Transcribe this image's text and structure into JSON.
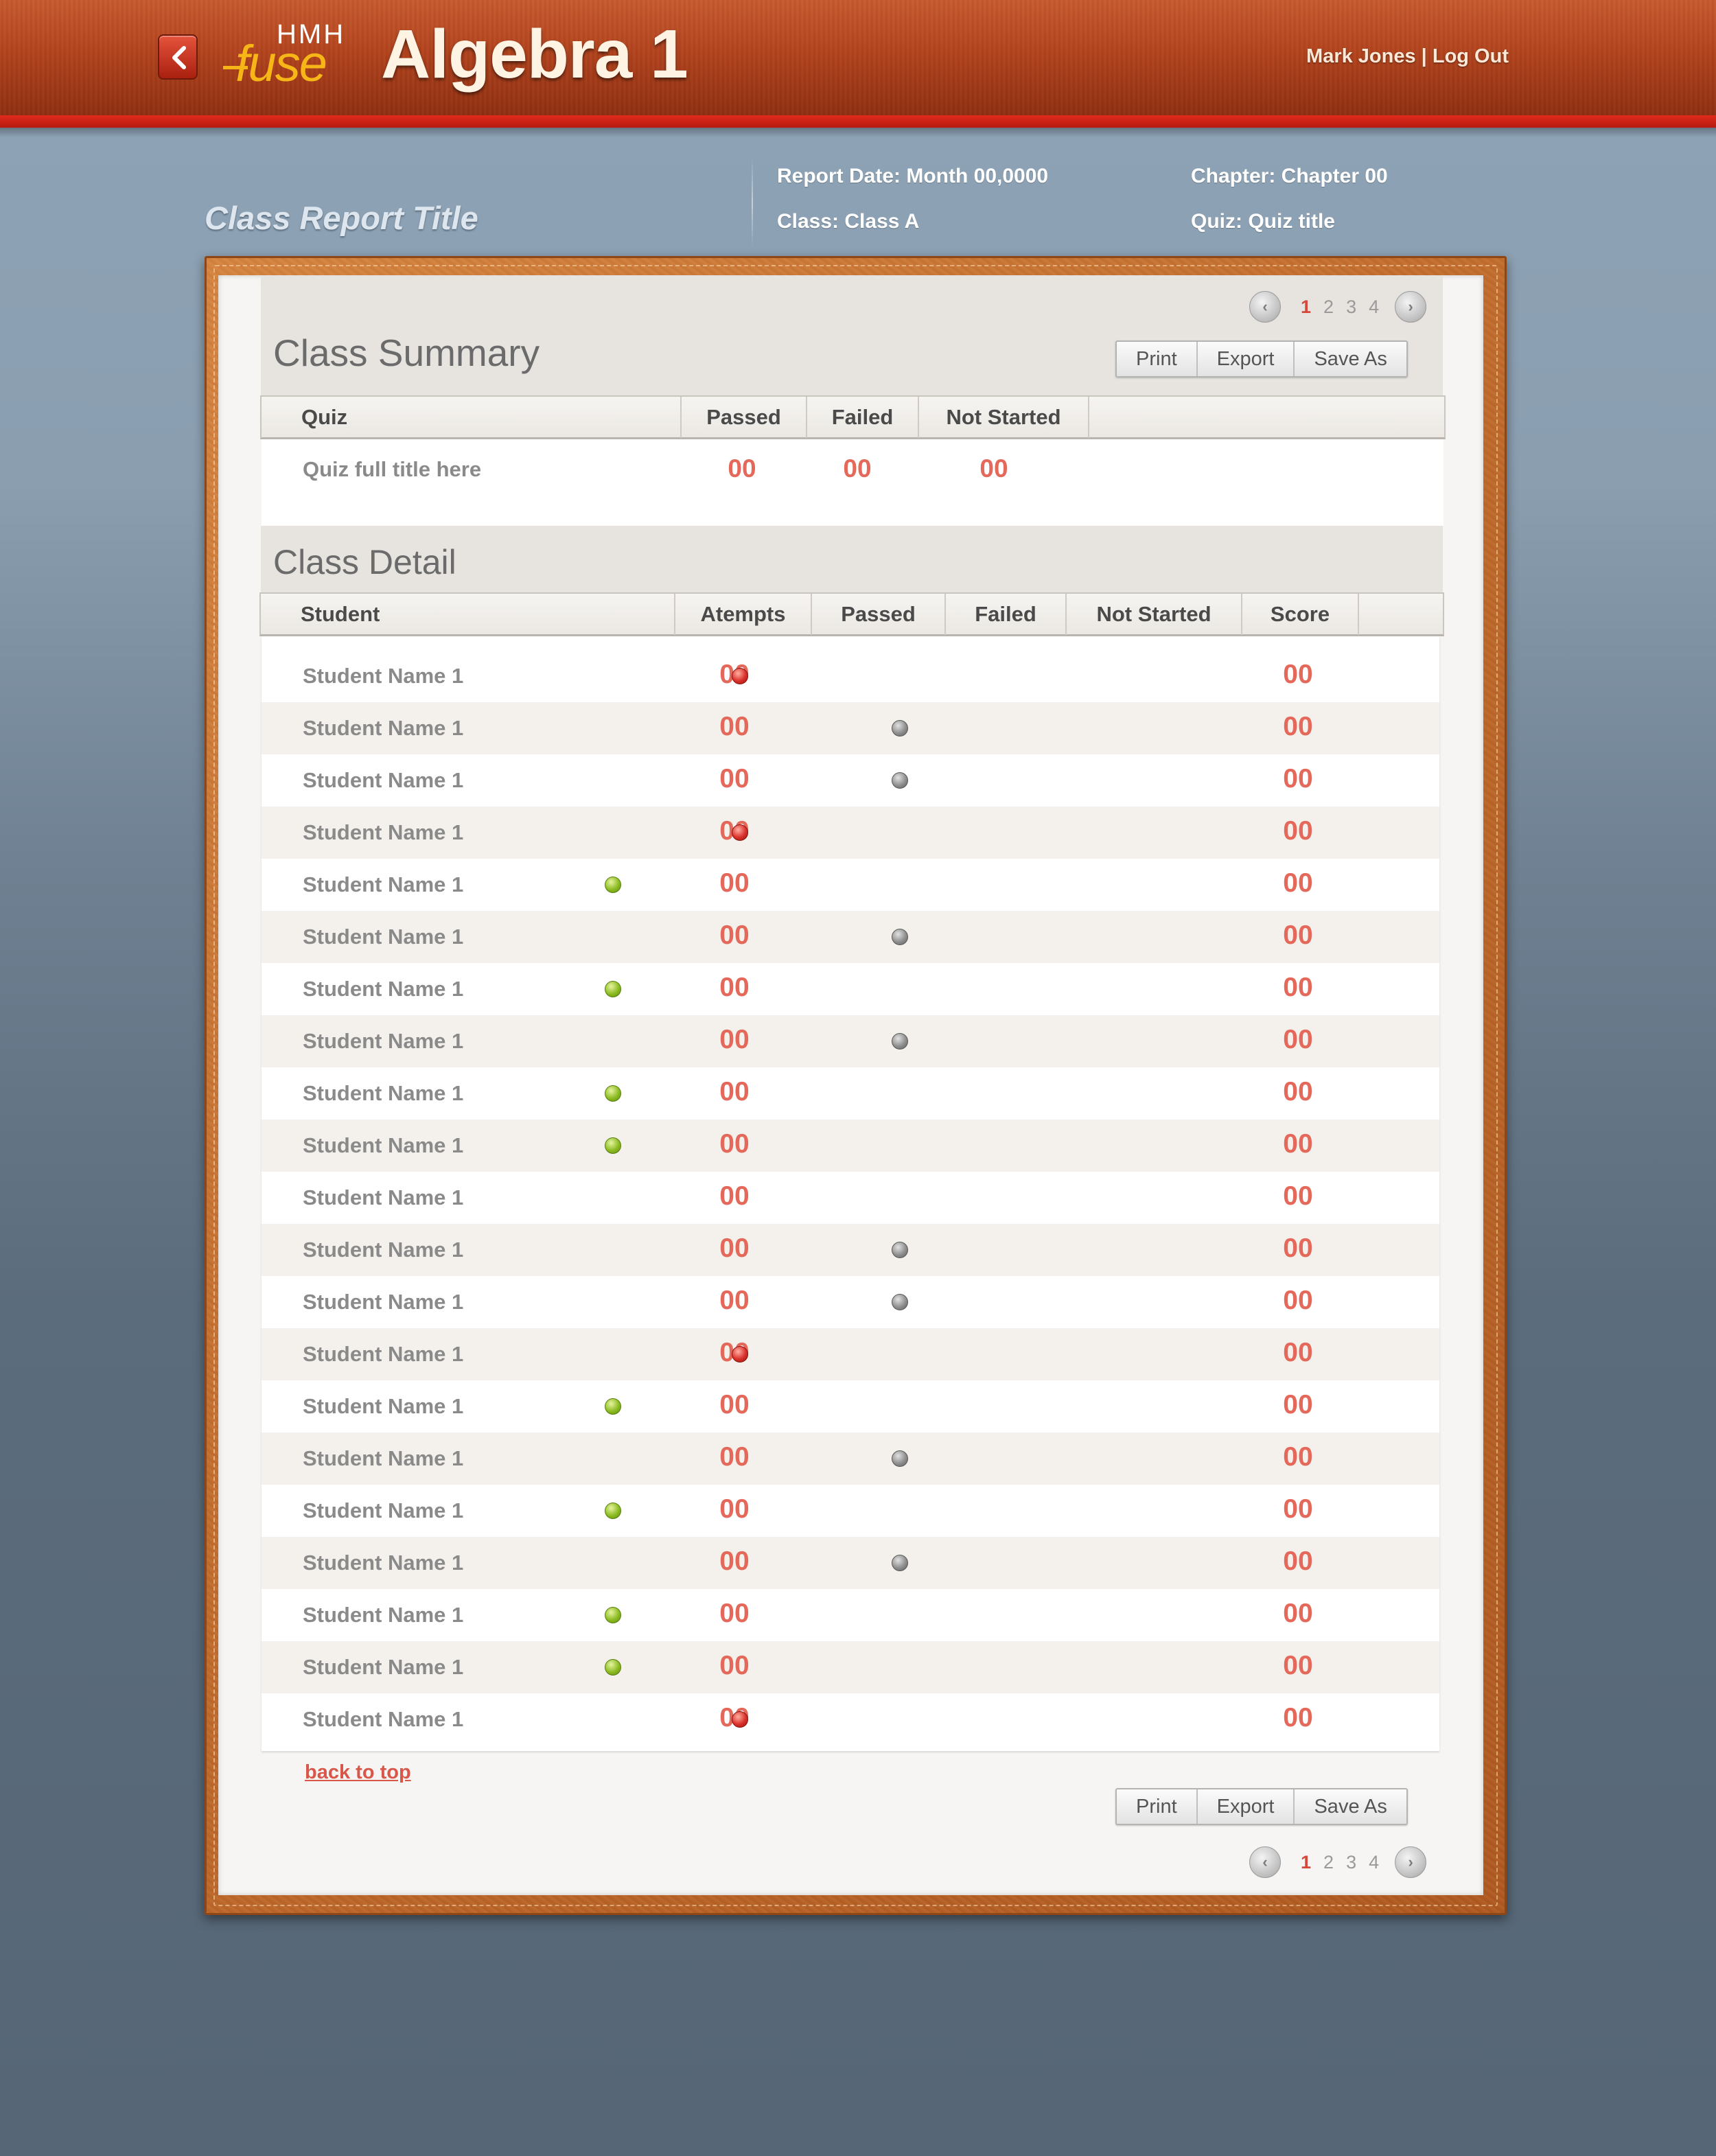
{
  "header": {
    "logo_top": "HMH",
    "logo_main": "fuse",
    "app_title": "Algebra 1",
    "user_name": "Mark Jones",
    "separator": " | ",
    "logout_label": "Log Out"
  },
  "report": {
    "title": "Class Report Title",
    "report_date": "Report Date: Month 00,0000",
    "class": "Class: Class A",
    "chapter": "Chapter: Chapter 00",
    "quiz": "Quiz: Quiz title"
  },
  "pager": {
    "pages": [
      "1",
      "2",
      "3",
      "4"
    ],
    "current": "1"
  },
  "actions": {
    "print": "Print",
    "export": "Export",
    "save_as": "Save As"
  },
  "summary": {
    "title": "Class Summary",
    "headers": {
      "quiz": "Quiz",
      "passed": "Passed",
      "failed": "Failed",
      "not_started": "Not Started"
    },
    "row": {
      "quiz": "Quiz full title here",
      "passed": "00",
      "failed": "00",
      "not_started": "00"
    }
  },
  "detail": {
    "title": "Class Detail",
    "headers": {
      "student": "Student",
      "attempts": "Atempts",
      "passed": "Passed",
      "failed": "Failed",
      "not_started": "Not Started",
      "score": "Score"
    },
    "rows": [
      {
        "name": "Student Name 1",
        "attempts": "00",
        "status": "failed",
        "score": "00"
      },
      {
        "name": "Student Name 1",
        "attempts": "00",
        "status": "not_started",
        "score": "00"
      },
      {
        "name": "Student Name 1",
        "attempts": "00",
        "status": "not_started",
        "score": "00"
      },
      {
        "name": "Student Name 1",
        "attempts": "00",
        "status": "failed",
        "score": "00"
      },
      {
        "name": "Student Name 1",
        "attempts": "00",
        "status": "passed",
        "score": "00"
      },
      {
        "name": "Student Name 1",
        "attempts": "00",
        "status": "not_started",
        "score": "00"
      },
      {
        "name": "Student Name 1",
        "attempts": "00",
        "status": "passed",
        "score": "00"
      },
      {
        "name": "Student Name 1",
        "attempts": "00",
        "status": "not_started",
        "score": "00"
      },
      {
        "name": "Student Name 1",
        "attempts": "00",
        "status": "passed",
        "score": "00"
      },
      {
        "name": "Student Name 1",
        "attempts": "00",
        "status": "passed",
        "score": "00"
      },
      {
        "name": "Student Name 1",
        "attempts": "00",
        "status": "",
        "score": "00"
      },
      {
        "name": "Student Name 1",
        "attempts": "00",
        "status": "not_started",
        "score": "00"
      },
      {
        "name": "Student Name 1",
        "attempts": "00",
        "status": "not_started",
        "score": "00"
      },
      {
        "name": "Student Name 1",
        "attempts": "00",
        "status": "failed",
        "score": "00"
      },
      {
        "name": "Student Name 1",
        "attempts": "00",
        "status": "passed",
        "score": "00"
      },
      {
        "name": "Student Name 1",
        "attempts": "00",
        "status": "not_started",
        "score": "00"
      },
      {
        "name": "Student Name 1",
        "attempts": "00",
        "status": "passed",
        "score": "00"
      },
      {
        "name": "Student Name 1",
        "attempts": "00",
        "status": "not_started",
        "score": "00"
      },
      {
        "name": "Student Name 1",
        "attempts": "00",
        "status": "passed",
        "score": "00"
      },
      {
        "name": "Student Name 1",
        "attempts": "00",
        "status": "passed",
        "score": "00"
      },
      {
        "name": "Student Name 1",
        "attempts": "00",
        "status": "failed",
        "score": "00"
      }
    ]
  },
  "footer": {
    "back_to_top": "back to top"
  },
  "colors": {
    "accent_red": "#e4695a",
    "status_passed": "#8dbb22",
    "status_failed": "#d9302a",
    "status_not_started": "#8f8f8f"
  }
}
